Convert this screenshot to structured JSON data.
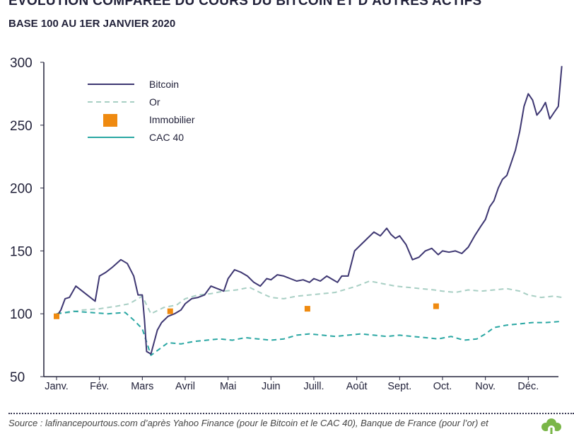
{
  "title": "ÉVOLUTION COMPARÉE DU COURS DU BITCOIN ET D’AUTRES ACTIFS",
  "subtitle": "BASE 100 AU 1ER JANVIER 2020",
  "source": "Source : lafinancepourtous.com d’après Yahoo Finance (pour le Bitcoin et le CAC 40), Banque de France (pour l’or) et",
  "colors": {
    "bitcoin": "#3e3772",
    "or": "#a8cfc4",
    "immobilier": "#ef8a10",
    "cac40": "#2aa7a3",
    "axis": "#22223a",
    "logo": "#7ab648"
  },
  "logo_icon": "tree-icon",
  "chart_data": {
    "type": "line",
    "title": "ÉVOLUTION COMPARÉE DU COURS DU BITCOIN ET D’AUTRES ACTIFS",
    "subtitle": "BASE 100 AU 1ER JANVIER 2020",
    "xlabel": "",
    "ylabel": "",
    "categories": [
      "Janv.",
      "Fév.",
      "Mars",
      "Avril",
      "Mai",
      "Juin",
      "Juill.",
      "Août",
      "Sept.",
      "Oct.",
      "Nov.",
      "Déc."
    ],
    "ylim": [
      50,
      300
    ],
    "yticks": [
      50,
      100,
      150,
      200,
      250,
      300
    ],
    "grid": false,
    "legend": "top-left",
    "series": [
      {
        "name": "Bitcoin",
        "style": "solid",
        "x": [
          0,
          0.1,
          0.2,
          0.3,
          0.45,
          0.6,
          0.75,
          0.9,
          1.0,
          1.15,
          1.3,
          1.5,
          1.65,
          1.8,
          1.9,
          2.0,
          2.05,
          2.1,
          2.2,
          2.35,
          2.45,
          2.6,
          2.75,
          2.9,
          3.0,
          3.15,
          3.3,
          3.45,
          3.6,
          3.75,
          3.9,
          4.0,
          4.15,
          4.3,
          4.45,
          4.6,
          4.75,
          4.9,
          5.0,
          5.15,
          5.3,
          5.45,
          5.6,
          5.75,
          5.9,
          6.0,
          6.15,
          6.3,
          6.45,
          6.55,
          6.65,
          6.8,
          6.95,
          7.1,
          7.25,
          7.4,
          7.55,
          7.7,
          7.8,
          7.9,
          8.0,
          8.15,
          8.3,
          8.45,
          8.6,
          8.75,
          8.9,
          9.0,
          9.15,
          9.3,
          9.45,
          9.6,
          9.75,
          9.9,
          10.0,
          10.1,
          10.2,
          10.3,
          10.4,
          10.5,
          10.6,
          10.7,
          10.8,
          10.9,
          11.0,
          11.1,
          11.2,
          11.3,
          11.4,
          11.5,
          11.6,
          11.7,
          11.78
        ],
        "values": [
          98,
          103,
          112,
          113,
          122,
          118,
          114,
          110,
          130,
          133,
          137,
          143,
          140,
          130,
          115,
          115,
          95,
          70,
          68,
          87,
          93,
          98,
          100,
          103,
          108,
          112,
          113,
          115,
          122,
          120,
          118,
          128,
          135,
          133,
          130,
          125,
          122,
          128,
          127,
          131,
          130,
          128,
          126,
          127,
          125,
          128,
          126,
          130,
          127,
          125,
          130,
          130,
          150,
          155,
          160,
          165,
          162,
          168,
          163,
          160,
          162,
          155,
          143,
          145,
          150,
          152,
          147,
          150,
          149,
          150,
          148,
          153,
          162,
          170,
          175,
          185,
          190,
          200,
          207,
          210,
          220,
          230,
          245,
          265,
          275,
          270,
          258,
          262,
          268,
          255,
          260,
          265,
          297
        ]
      },
      {
        "name": "Or",
        "style": "dashed",
        "x": [
          0,
          0.3,
          0.6,
          1.0,
          1.4,
          1.7,
          2.0,
          2.2,
          2.5,
          2.8,
          3.0,
          3.3,
          3.6,
          3.9,
          4.2,
          4.5,
          4.8,
          5.0,
          5.3,
          5.6,
          5.9,
          6.2,
          6.5,
          6.8,
          7.0,
          7.3,
          7.6,
          7.9,
          8.2,
          8.5,
          8.8,
          9.0,
          9.3,
          9.6,
          9.9,
          10.2,
          10.5,
          10.8,
          11.0,
          11.3,
          11.6,
          11.78
        ],
        "values": [
          100,
          101,
          103,
          104,
          106,
          108,
          114,
          100,
          105,
          107,
          112,
          115,
          116,
          118,
          119,
          121,
          116,
          113,
          112,
          114,
          115,
          116,
          117,
          120,
          122,
          126,
          124,
          122,
          121,
          120,
          119,
          118,
          117,
          119,
          118,
          119,
          120,
          118,
          115,
          113,
          114,
          113
        ]
      },
      {
        "name": "Immobilier",
        "style": "markers",
        "x": [
          0,
          2.65,
          5.85,
          8.85
        ],
        "values": [
          98,
          102,
          104,
          106
        ]
      },
      {
        "name": "CAC 40",
        "style": "dashed",
        "x": [
          0,
          0.4,
          0.8,
          1.2,
          1.6,
          1.8,
          2.0,
          2.2,
          2.4,
          2.6,
          2.9,
          3.2,
          3.5,
          3.8,
          4.1,
          4.4,
          4.7,
          5.0,
          5.3,
          5.6,
          5.9,
          6.2,
          6.5,
          6.8,
          7.1,
          7.4,
          7.7,
          8.0,
          8.3,
          8.6,
          8.9,
          9.2,
          9.5,
          9.8,
          10.0,
          10.2,
          10.5,
          10.8,
          11.1,
          11.4,
          11.78
        ],
        "values": [
          100,
          102,
          101,
          100,
          101,
          95,
          88,
          67,
          72,
          77,
          76,
          78,
          79,
          80,
          79,
          81,
          80,
          79,
          80,
          83,
          84,
          83,
          82,
          83,
          84,
          83,
          82,
          83,
          82,
          81,
          80,
          82,
          79,
          80,
          84,
          89,
          91,
          92,
          93,
          93,
          94
        ]
      }
    ]
  }
}
